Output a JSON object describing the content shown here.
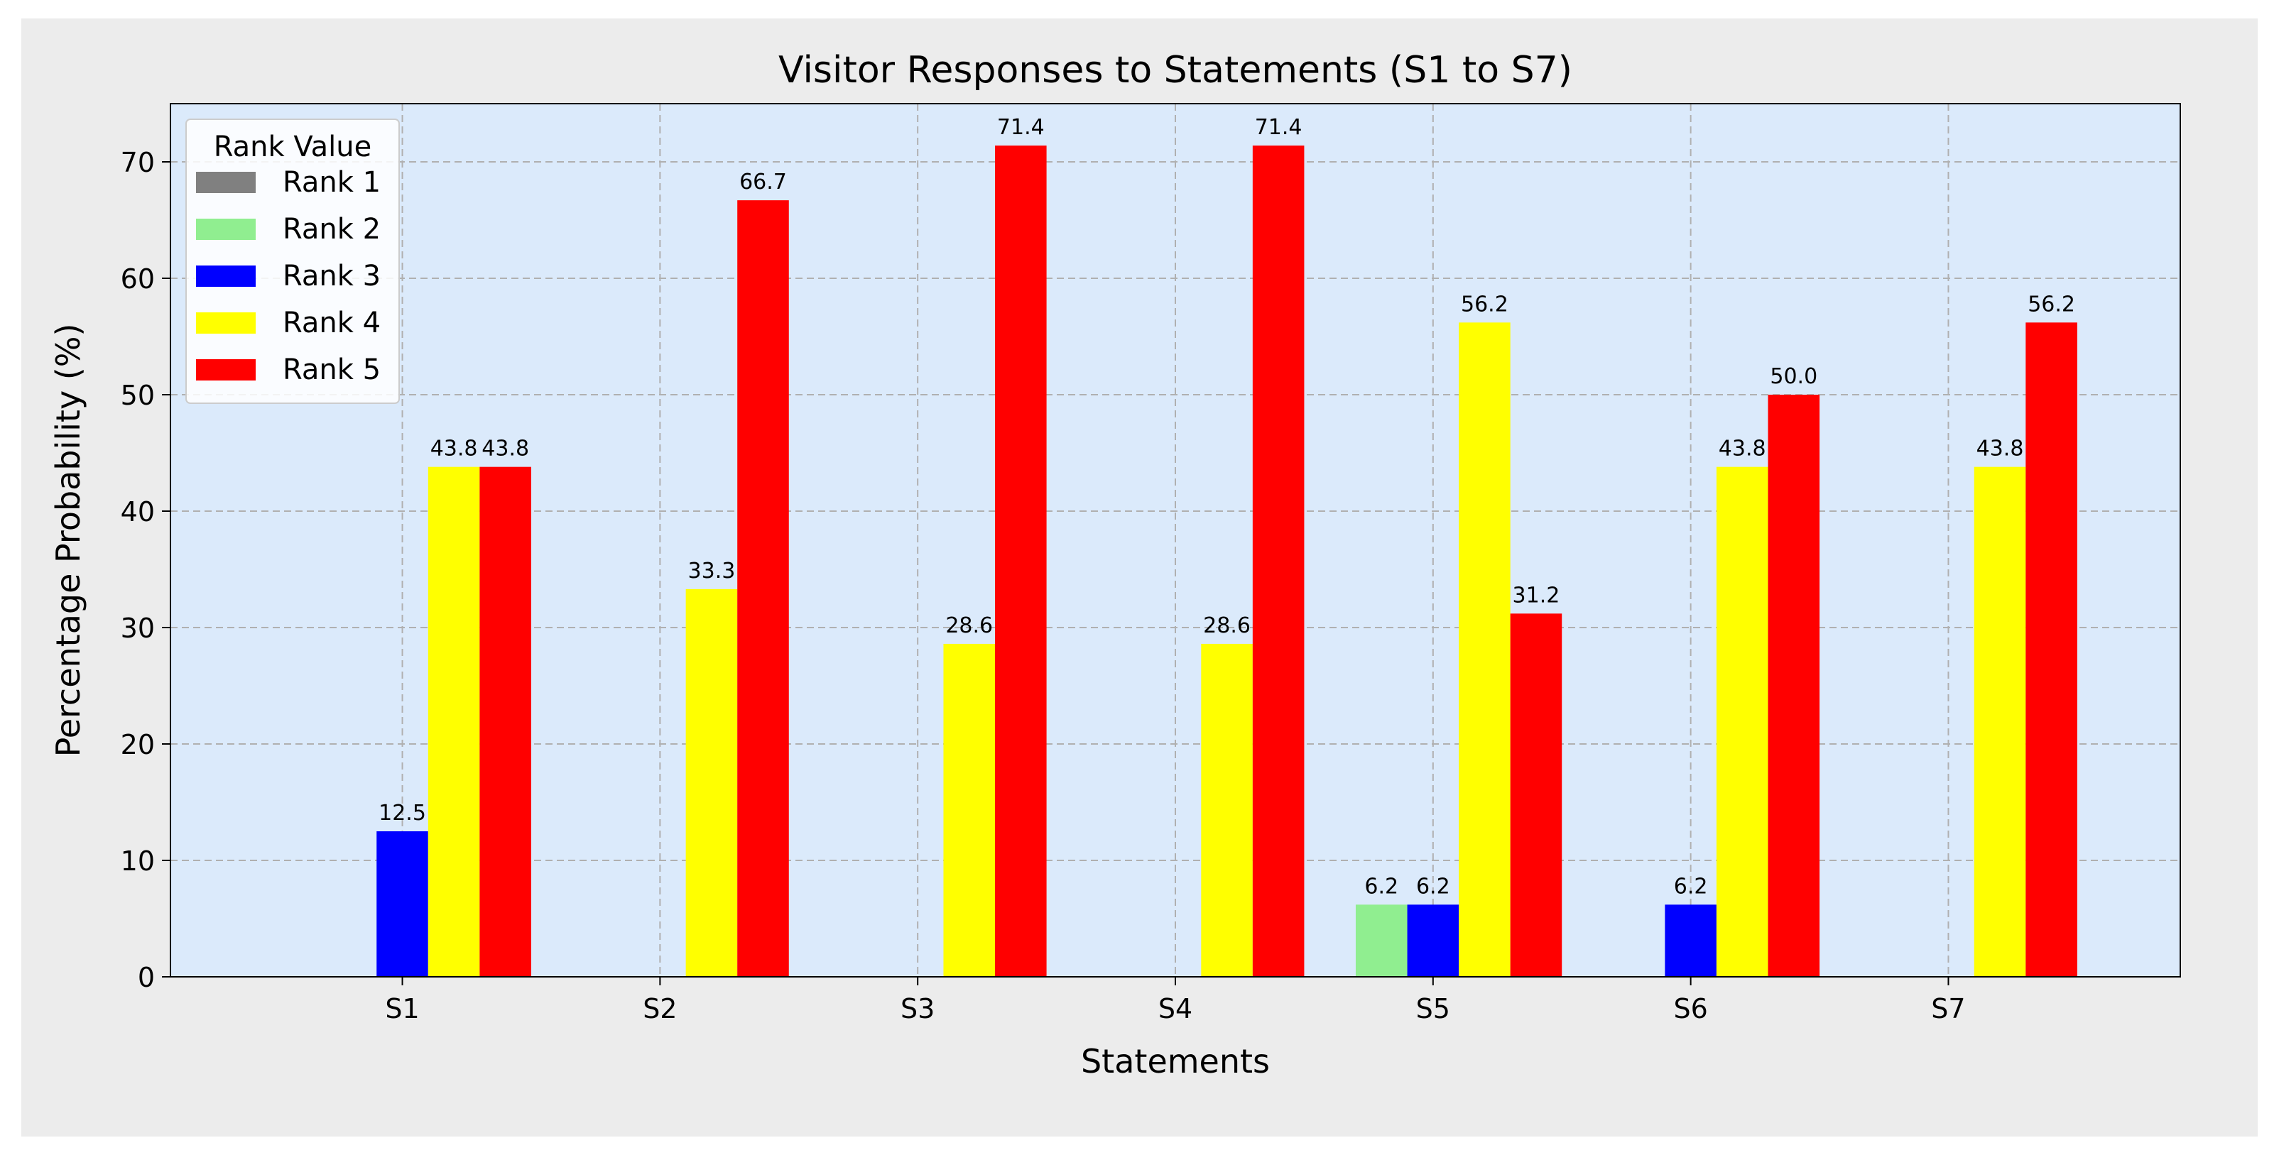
{
  "chart_data": {
    "type": "bar",
    "title": "Visitor Responses to Statements (S1 to S7)",
    "xlabel": "Statements",
    "ylabel": "Percentage Probability (%)",
    "categories": [
      "S1",
      "S2",
      "S3",
      "S4",
      "S5",
      "S6",
      "S7"
    ],
    "ylim": [
      0,
      75
    ],
    "yticks": [
      0,
      10,
      20,
      30,
      40,
      50,
      60,
      70
    ],
    "grid": true,
    "legend": {
      "title": "Rank Value",
      "placement": "top-left"
    },
    "series": [
      {
        "name": "Rank 1",
        "color": "#808080",
        "values": [
          0,
          0,
          0,
          0,
          0,
          0,
          0
        ]
      },
      {
        "name": "Rank 2",
        "color": "#90ee90",
        "values": [
          0,
          0,
          0,
          0,
          6.2,
          0,
          0
        ]
      },
      {
        "name": "Rank 3",
        "color": "#0000ff",
        "values": [
          12.5,
          0,
          0,
          0,
          6.2,
          6.2,
          0
        ]
      },
      {
        "name": "Rank 4",
        "color": "#ffff00",
        "values": [
          43.8,
          33.3,
          28.6,
          28.6,
          56.2,
          43.8,
          43.8
        ]
      },
      {
        "name": "Rank 5",
        "color": "#ff0000",
        "values": [
          43.8,
          66.7,
          71.4,
          71.4,
          31.2,
          50.0,
          56.2
        ]
      }
    ],
    "plot_background": "#dbeafb",
    "figure_background": "#ececec"
  }
}
